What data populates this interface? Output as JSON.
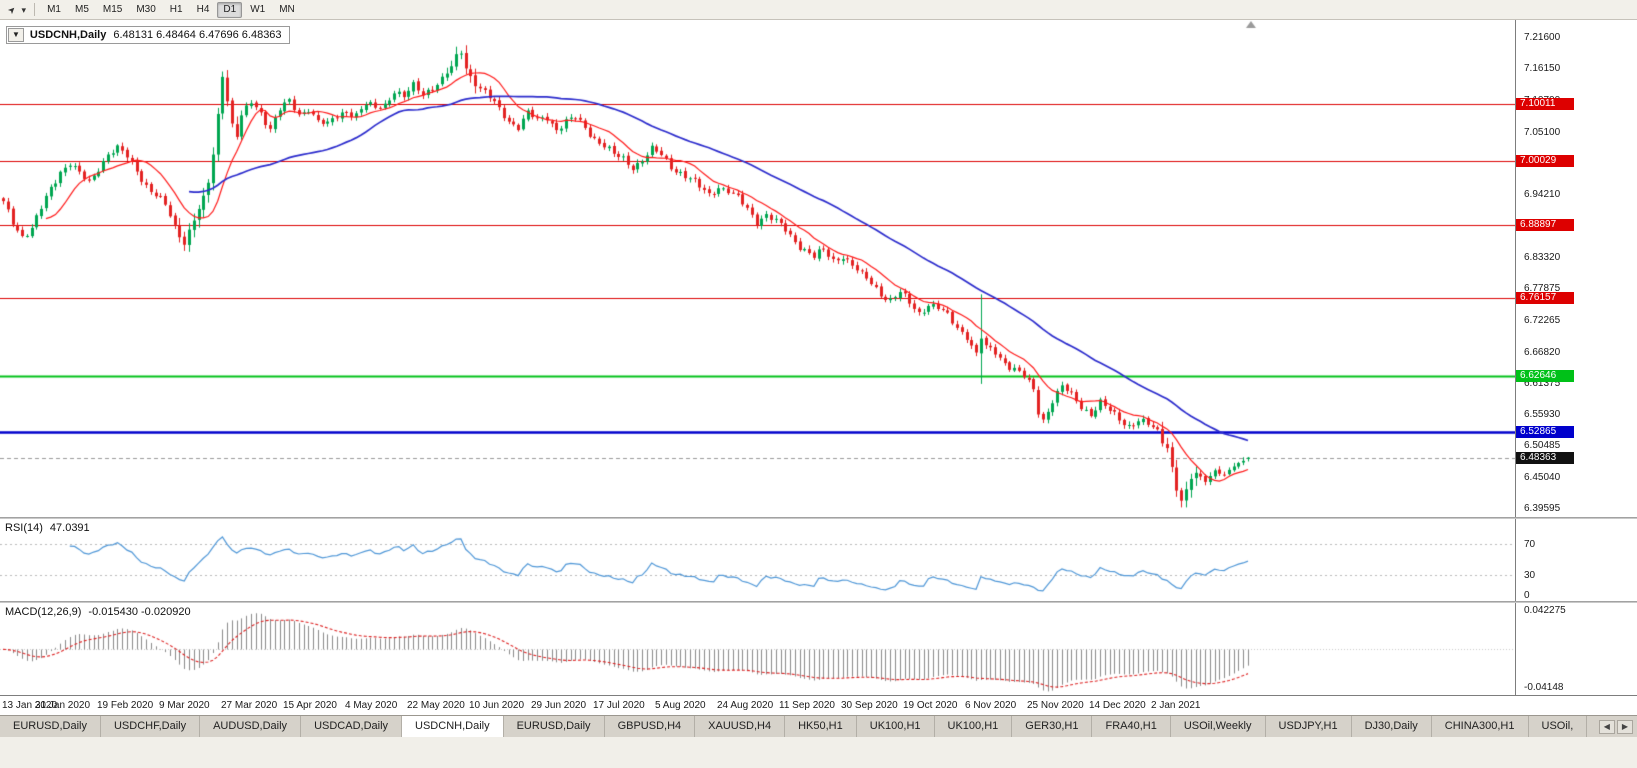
{
  "toolbar": {
    "cursor_icon": "➤",
    "caret_icon": "▾",
    "timeframes": [
      "M1",
      "M5",
      "M15",
      "M30",
      "H1",
      "H4",
      "D1",
      "W1",
      "MN"
    ],
    "active_timeframe": "D1"
  },
  "chart": {
    "symbol_period": "USDCNH,Daily",
    "dropdown_icon": "▼",
    "ohlc": "6.48131 6.48464 6.47696 6.48363",
    "bars": 262,
    "axis_labels": [
      "7.21600",
      "7.16150",
      "7.10700",
      "7.05100",
      "6.99650",
      "6.94210",
      "6.88760",
      "6.83320",
      "6.77875",
      "6.72265",
      "6.66820",
      "6.61375",
      "6.55930",
      "6.50485",
      "6.45040",
      "6.39595"
    ],
    "hlines": [
      {
        "label": "7.10011",
        "price": 7.10011,
        "color": "#dd0000",
        "width": 1.2
      },
      {
        "label": "7.00029",
        "price": 7.00029,
        "color": "#dd0000",
        "width": 1.2
      },
      {
        "label": "6.88897",
        "price": 6.88897,
        "color": "#dd0000",
        "width": 1.2
      },
      {
        "label": "6.76157",
        "price": 6.76157,
        "color": "#dd0000",
        "width": 1.2
      },
      {
        "label": "6.62646",
        "price": 6.62646,
        "color": "#00c118",
        "width": 2
      },
      {
        "label": "6.52865",
        "price": 6.52865,
        "color": "#0000cc",
        "width": 2.4
      }
    ],
    "current_price": {
      "label": "6.48363",
      "price": 6.48363,
      "color": "#111111"
    },
    "last_bar": {
      "open": 6.48131,
      "high": 6.48464,
      "low": 6.47696,
      "close": 6.48363
    },
    "colors": {
      "up": "#00a651",
      "down": "#e32222",
      "ma_fast": "#ff1a1a",
      "ma_slow": "#2b2bcc"
    },
    "ma_fast_period": 10,
    "ma_slow_period": 40,
    "chart_data_note": "candlestick closes estimated from screenshot; anchors are [bar_index, close_price]",
    "close_anchors": [
      [
        0,
        6.925
      ],
      [
        2,
        6.895
      ],
      [
        4,
        6.872
      ],
      [
        6,
        6.882
      ],
      [
        8,
        6.915
      ],
      [
        10,
        6.952
      ],
      [
        12,
        6.985
      ],
      [
        14,
        6.998
      ],
      [
        16,
        6.975
      ],
      [
        18,
        6.96
      ],
      [
        20,
        6.99
      ],
      [
        22,
        7.015
      ],
      [
        24,
        7.02
      ],
      [
        26,
        7.005
      ],
      [
        28,
        6.985
      ],
      [
        30,
        6.96
      ],
      [
        32,
        6.94
      ],
      [
        34,
        6.92
      ],
      [
        36,
        6.885
      ],
      [
        38,
        6.862
      ],
      [
        40,
        6.9
      ],
      [
        42,
        6.93
      ],
      [
        43,
        6.96
      ],
      [
        44,
        7.01
      ],
      [
        45,
        7.08
      ],
      [
        46,
        7.155
      ],
      [
        47,
        7.11
      ],
      [
        48,
        7.065
      ],
      [
        49,
        7.045
      ],
      [
        50,
        7.075
      ],
      [
        52,
        7.1
      ],
      [
        54,
        7.085
      ],
      [
        56,
        7.06
      ],
      [
        58,
        7.09
      ],
      [
        60,
        7.1
      ],
      [
        62,
        7.08
      ],
      [
        64,
        7.095
      ],
      [
        66,
        7.07
      ],
      [
        68,
        7.06
      ],
      [
        70,
        7.078
      ],
      [
        72,
        7.09
      ],
      [
        74,
        7.082
      ],
      [
        76,
        7.096
      ],
      [
        78,
        7.09
      ],
      [
        80,
        7.1
      ],
      [
        82,
        7.125
      ],
      [
        84,
        7.11
      ],
      [
        86,
        7.128
      ],
      [
        88,
        7.118
      ],
      [
        90,
        7.132
      ],
      [
        92,
        7.142
      ],
      [
        94,
        7.16
      ],
      [
        95,
        7.178
      ],
      [
        96,
        7.19
      ],
      [
        97,
        7.165
      ],
      [
        98,
        7.15
      ],
      [
        100,
        7.128
      ],
      [
        102,
        7.108
      ],
      [
        104,
        7.088
      ],
      [
        106,
        7.072
      ],
      [
        108,
        7.062
      ],
      [
        110,
        7.082
      ],
      [
        112,
        7.068
      ],
      [
        114,
        7.078
      ],
      [
        116,
        7.058
      ],
      [
        118,
        7.068
      ],
      [
        120,
        7.072
      ],
      [
        122,
        7.058
      ],
      [
        124,
        7.042
      ],
      [
        126,
        7.028
      ],
      [
        128,
        7.008
      ],
      [
        130,
        7.002
      ],
      [
        132,
        6.992
      ],
      [
        134,
        7.004
      ],
      [
        136,
        7.018
      ],
      [
        138,
        7.008
      ],
      [
        140,
        6.992
      ],
      [
        142,
        6.982
      ],
      [
        144,
        6.968
      ],
      [
        146,
        6.952
      ],
      [
        148,
        6.942
      ],
      [
        150,
        6.958
      ],
      [
        152,
        6.948
      ],
      [
        154,
        6.932
      ],
      [
        156,
        6.916
      ],
      [
        158,
        6.898
      ],
      [
        160,
        6.908
      ],
      [
        162,
        6.892
      ],
      [
        164,
        6.878
      ],
      [
        166,
        6.862
      ],
      [
        168,
        6.848
      ],
      [
        170,
        6.832
      ],
      [
        172,
        6.842
      ],
      [
        174,
        6.828
      ],
      [
        176,
        6.838
      ],
      [
        178,
        6.818
      ],
      [
        180,
        6.798
      ],
      [
        182,
        6.788
      ],
      [
        184,
        6.772
      ],
      [
        186,
        6.758
      ],
      [
        188,
        6.768
      ],
      [
        190,
        6.752
      ],
      [
        192,
        6.738
      ],
      [
        194,
        6.752
      ],
      [
        196,
        6.742
      ],
      [
        198,
        6.728
      ],
      [
        200,
        6.712
      ],
      [
        202,
        6.698
      ],
      [
        204,
        6.662
      ],
      [
        205,
        6.69
      ],
      [
        206,
        6.672
      ],
      [
        208,
        6.668
      ],
      [
        210,
        6.652
      ],
      [
        212,
        6.638
      ],
      [
        214,
        6.622
      ],
      [
        216,
        6.6
      ],
      [
        217,
        6.565
      ],
      [
        218,
        6.552
      ],
      [
        220,
        6.585
      ],
      [
        222,
        6.605
      ],
      [
        224,
        6.59
      ],
      [
        226,
        6.575
      ],
      [
        228,
        6.562
      ],
      [
        230,
        6.578
      ],
      [
        232,
        6.562
      ],
      [
        234,
        6.552
      ],
      [
        236,
        6.542
      ],
      [
        238,
        6.548
      ],
      [
        240,
        6.538
      ],
      [
        242,
        6.528
      ],
      [
        243,
        6.515
      ],
      [
        244,
        6.502
      ],
      [
        245,
        6.468
      ],
      [
        246,
        6.428
      ],
      [
        247,
        6.408
      ],
      [
        248,
        6.426
      ],
      [
        249,
        6.446
      ],
      [
        250,
        6.456
      ],
      [
        252,
        6.444
      ],
      [
        254,
        6.462
      ],
      [
        256,
        6.452
      ],
      [
        258,
        6.468
      ],
      [
        260,
        6.478
      ],
      [
        261,
        6.48363
      ]
    ],
    "wild_zones": [
      [
        36,
        50
      ],
      [
        93,
        99
      ],
      [
        243,
        250
      ]
    ],
    "tall_bar": {
      "index": 205,
      "high": 6.768,
      "low": 6.612
    },
    "noise": {
      "a1": 0.0042,
      "f1": 2.137,
      "a2": 0.0058,
      "f2": 0.731,
      "p2": 2.0
    },
    "x_labels": [
      "13 Jan 2020",
      "31 Jan 2020",
      "19 Feb 2020",
      "9 Mar 2020",
      "27 Mar 2020",
      "15 Apr 2020",
      "4 May 2020",
      "22 May 2020",
      "10 Jun 2020",
      "29 Jun 2020",
      "17 Jul 2020",
      "5 Aug 2020",
      "24 Aug 2020",
      "11 Sep 2020",
      "30 Sep 2020",
      "19 Oct 2020",
      "6 Nov 2020",
      "25 Nov 2020",
      "14 Dec 2020",
      "2 Jan 2021"
    ]
  },
  "rsi": {
    "name": "RSI(14)",
    "value": "47.0391",
    "period": 14,
    "levels": [
      {
        "label": "70",
        "value": 70
      },
      {
        "label": "30",
        "value": 30
      },
      {
        "label": "0",
        "value": 0
      }
    ],
    "color": "#4f97d7"
  },
  "macd": {
    "name": "MACD(12,26,9)",
    "value": "-0.015430 -0.020920",
    "fast": 12,
    "slow": 26,
    "signal": 9,
    "axis_top_label": "0.042275",
    "axis_bottom_label": "-0.04148",
    "axis_top": 0.042275,
    "axis_bottom": -0.04148,
    "hist_color": "#8a8a8a",
    "signal_color": "#dd2222"
  },
  "tabs": {
    "items": [
      "EURUSD,Daily",
      "USDCHF,Daily",
      "AUDUSD,Daily",
      "USDCAD,Daily",
      "USDCNH,Daily",
      "EURUSD,Daily",
      "GBPUSD,H4",
      "XAUUSD,H4",
      "HK50,H1",
      "UK100,H1",
      "UK100,H1",
      "GER30,H1",
      "FRA40,H1",
      "USOil,Weekly",
      "USDJPY,H1",
      "DJ30,Daily",
      "CHINA300,H1",
      "USOil,"
    ],
    "active_index": 4,
    "scroll_left_icon": "◀",
    "scroll_right_icon": "▶"
  }
}
